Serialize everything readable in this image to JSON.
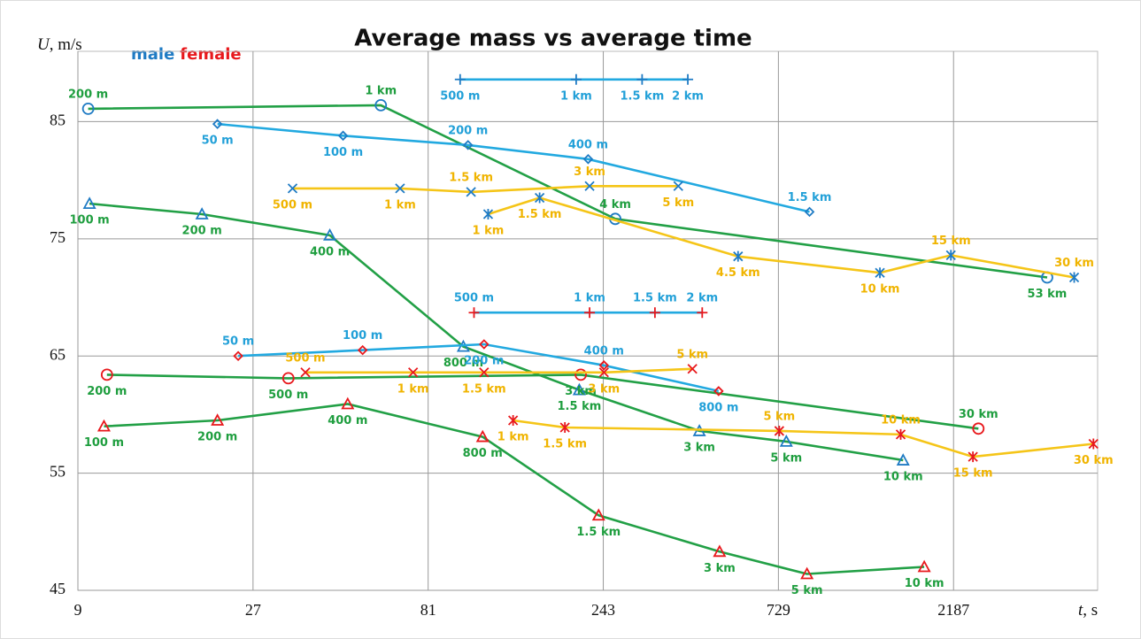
{
  "chart_data": {
    "type": "line",
    "title": "Average mass vs average time",
    "y_label": {
      "symbol": "U",
      "unit": ", m/s"
    },
    "x_label": {
      "symbol": "t",
      "unit": ", s"
    },
    "legend": [
      {
        "label": "male",
        "color": "#1f7bc4"
      },
      {
        "label": "female",
        "color": "#e8181c"
      }
    ],
    "log_x": true,
    "grid": true,
    "xlim": [
      9,
      5400
    ],
    "xticks": [
      9,
      27,
      81,
      243,
      729,
      2187
    ],
    "ylim": [
      45,
      91
    ],
    "yticks": [
      45,
      55,
      65,
      75,
      85
    ],
    "series": [
      {
        "color": "#22a046",
        "marker": "circle",
        "marker_color": "#1f7bc4",
        "label_color": "#1f9e3f",
        "x": [
          9.6,
          60.2,
          262,
          3934
        ],
        "values": [
          86.1,
          86.4,
          76.7,
          71.7
        ],
        "labels": [
          "200 m",
          "1 km",
          "4 km",
          "53 km"
        ]
      },
      {
        "color": "#22a9e0",
        "marker": "diamond",
        "marker_color": "#1f7bc4",
        "label_color": "#22a0d8",
        "x": [
          21.6,
          47.5,
          104,
          221,
          886
        ],
        "values": [
          84.8,
          83.8,
          83.0,
          81.8,
          77.3
        ],
        "labels": [
          "50 m",
          "100 m",
          "200 m",
          "400 m",
          "1.5 km"
        ]
      },
      {
        "color": "#22a9e0",
        "marker": "plus",
        "marker_color": "#1f7bc4",
        "label_color": "#22a0d8",
        "x": [
          99,
          205,
          310,
          413
        ],
        "values": [
          88.6,
          88.6,
          88.6,
          88.6
        ],
        "labels": [
          "500 m",
          "1 km",
          "1.5 km",
          "2 km"
        ]
      },
      {
        "color": "#f5c518",
        "marker": "x",
        "marker_color": "#1f7bc4",
        "label_color": "#f0b400",
        "x": [
          34.6,
          67.9,
          106,
          223,
          389
        ],
        "values": [
          79.3,
          79.3,
          79.0,
          79.5,
          79.5
        ],
        "labels": [
          "500 m",
          "1 km",
          "1.5 km",
          "3 km",
          "5 km"
        ]
      },
      {
        "color": "#f5c518",
        "marker": "asterisk",
        "marker_color": "#1f7bc4",
        "label_color": "#f0b400",
        "x": [
          118,
          163,
          566,
          1378,
          2151,
          4662
        ],
        "values": [
          77.1,
          78.5,
          73.5,
          72.1,
          73.6,
          71.7
        ],
        "labels": [
          "1 km",
          "1.5 km",
          "4.5 km",
          "10 km",
          "15 km",
          "30 km"
        ]
      },
      {
        "color": "#22a046",
        "marker": "triangle",
        "marker_color": "#1f7bc4",
        "label_color": "#1f9e3f",
        "x": [
          9.68,
          19.6,
          43.7,
          101,
          209,
          444,
          766,
          1594
        ],
        "values": [
          78.0,
          77.1,
          75.3,
          65.8,
          62.1,
          58.6,
          57.7,
          56.1
        ],
        "labels": [
          "100 m",
          "200 m",
          "400 m",
          "800 m",
          "1.5 km",
          "3 km",
          "5 km",
          "10 km"
        ]
      },
      {
        "color": "#22a046",
        "marker": "circle",
        "marker_color": "#e8181c",
        "label_color": "#1f9e3f",
        "x": [
          10.8,
          33.7,
          211,
          2556
        ],
        "values": [
          63.4,
          63.1,
          63.4,
          58.8
        ],
        "labels": [
          "200 m",
          "500 m",
          "3 km",
          "30 km"
        ]
      },
      {
        "color": "#22a9e0",
        "marker": "diamond",
        "marker_color": "#e8181c",
        "label_color": "#22a0d8",
        "x": [
          24.6,
          53.7,
          115,
          244,
          501
        ],
        "values": [
          65.0,
          65.5,
          66.0,
          64.2,
          62.0
        ],
        "labels": [
          "50 m",
          "100 m",
          "200 m",
          "400 m",
          "800 m"
        ]
      },
      {
        "color": "#22a9e0",
        "marker": "plus",
        "marker_color": "#e8181c",
        "label_color": "#22a0d8",
        "x": [
          108,
          223,
          336,
          452
        ],
        "values": [
          68.7,
          68.7,
          68.7,
          68.7
        ],
        "labels": [
          "500 m",
          "1 km",
          "1.5 km",
          "2 km"
        ]
      },
      {
        "color": "#f5c518",
        "marker": "x",
        "marker_color": "#e8181c",
        "label_color": "#f0b400",
        "x": [
          37.5,
          73.7,
          115,
          244,
          425
        ],
        "values": [
          63.6,
          63.6,
          63.6,
          63.6,
          63.9
        ],
        "labels": [
          "500 m",
          "1 km",
          "1.5 km",
          "3 km",
          "5 km"
        ]
      },
      {
        "color": "#f5c518",
        "marker": "asterisk",
        "marker_color": "#e8181c",
        "label_color": "#f0b400",
        "x": [
          138,
          191,
          733,
          1570,
          2470,
          5260
        ],
        "values": [
          59.5,
          58.9,
          58.6,
          58.3,
          56.4,
          57.5
        ],
        "labels": [
          "1 km",
          "1.5 km",
          "5 km",
          "10 km",
          "15 km",
          "30 km"
        ]
      },
      {
        "color": "#22a046",
        "marker": "triangle",
        "marker_color": "#e8181c",
        "label_color": "#1f9e3f",
        "x": [
          10.6,
          21.6,
          48.9,
          114,
          236,
          504,
          872,
          1820
        ],
        "values": [
          59.0,
          59.5,
          60.9,
          58.1,
          51.4,
          48.3,
          46.4,
          47.0
        ],
        "labels": [
          "100 m",
          "200 m",
          "400 m",
          "800 m",
          "1.5 km",
          "3 km",
          "5 km",
          "10 km"
        ]
      }
    ]
  }
}
